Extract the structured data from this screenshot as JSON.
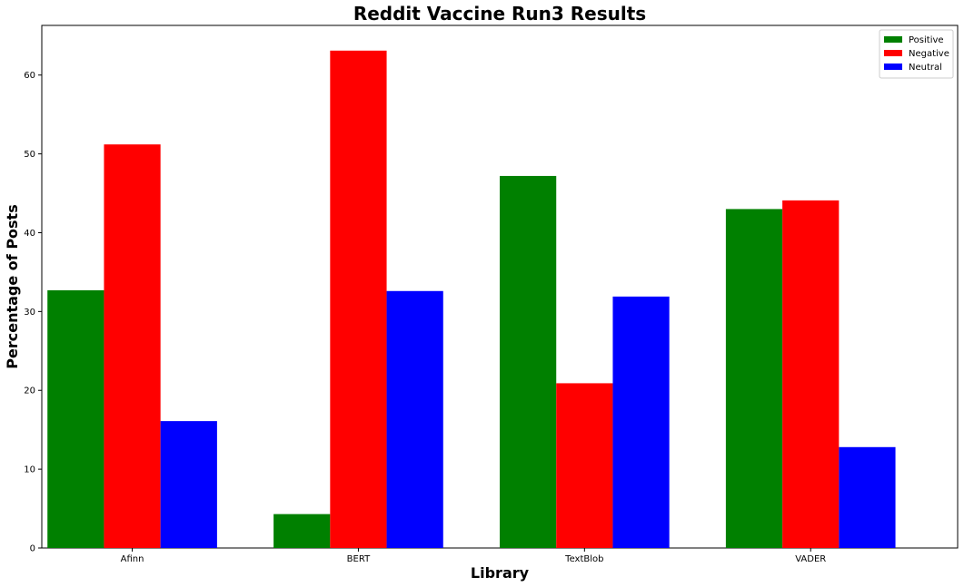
{
  "chart_data": {
    "type": "bar",
    "title": "Reddit Vaccine Run3 Results",
    "xlabel": "Library",
    "ylabel": "Percentage of Posts",
    "categories": [
      "Afinn",
      "BERT",
      "TextBlob",
      "VADER"
    ],
    "series": [
      {
        "name": "Positive",
        "color": "#008000",
        "values": [
          32.7,
          4.3,
          47.2,
          43.0
        ]
      },
      {
        "name": "Negative",
        "color": "#ff0000",
        "values": [
          51.2,
          63.1,
          20.9,
          44.1
        ]
      },
      {
        "name": "Neutral",
        "color": "#0000ff",
        "values": [
          16.1,
          32.6,
          31.9,
          12.8
        ]
      }
    ],
    "ylim": [
      0,
      66.3
    ],
    "yticks": [
      0,
      10,
      20,
      30,
      40,
      50,
      60
    ],
    "grid": false,
    "legend_position": "top-right"
  }
}
